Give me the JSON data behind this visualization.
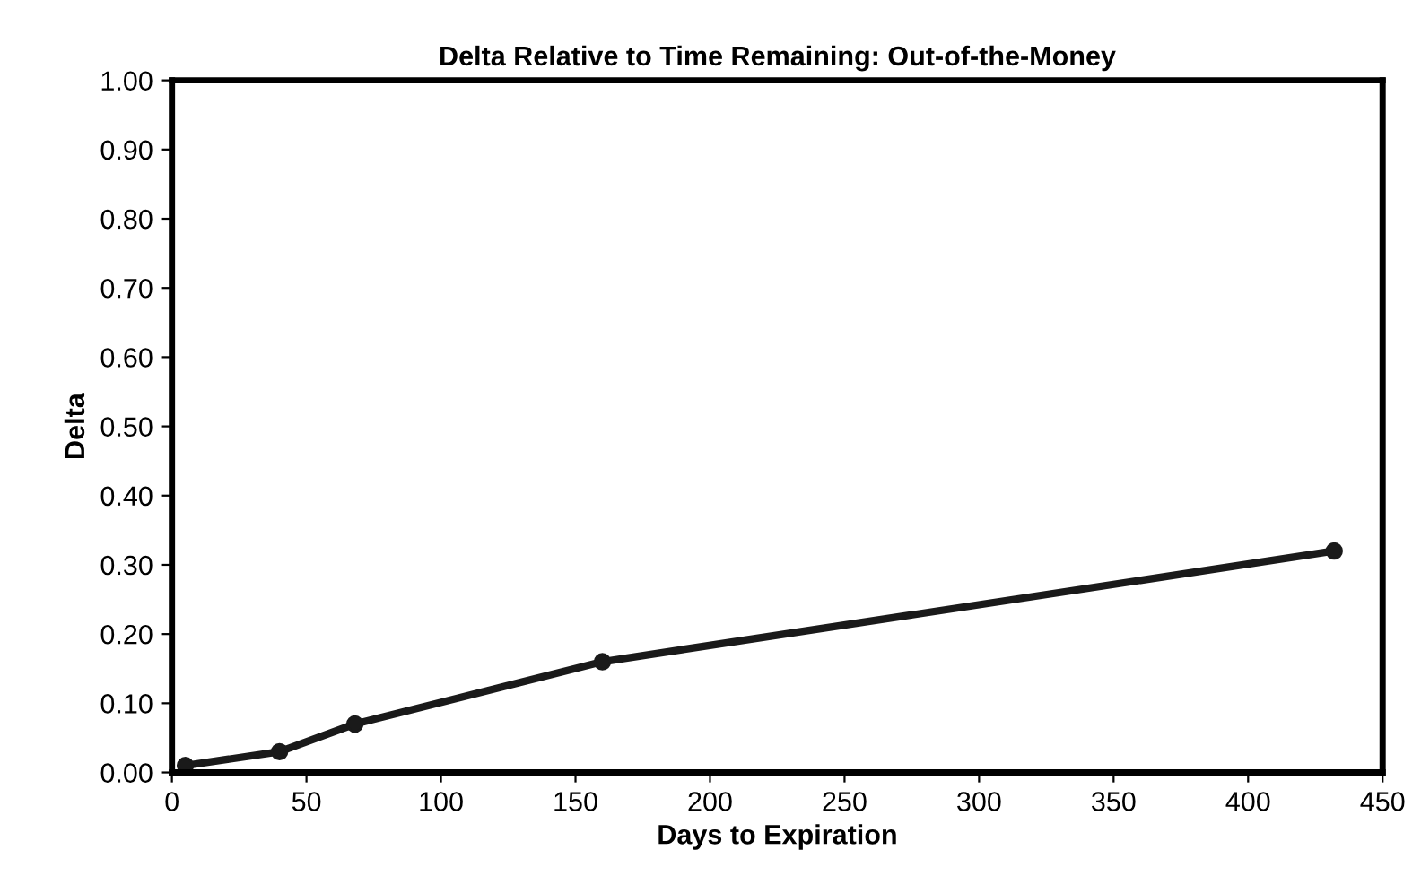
{
  "chart_data": {
    "type": "line",
    "title": "Delta Relative to Time Remaining: Out-of-the-Money",
    "xlabel": "Days to Expiration",
    "ylabel": "Delta",
    "x": [
      5,
      40,
      68,
      160,
      432
    ],
    "series": [
      {
        "color": "#1a1a1a",
        "values": [
          0.01,
          0.03,
          0.07,
          0.16,
          0.32
        ]
      }
    ],
    "xlim": [
      0,
      450
    ],
    "xticks": [
      0,
      50,
      100,
      150,
      200,
      250,
      300,
      350,
      400,
      450
    ],
    "ylim": [
      0,
      1
    ],
    "yticks": [
      {
        "value": 0,
        "label": "0.00"
      },
      {
        "value": 0.1,
        "label": "0.10"
      },
      {
        "value": 0.2,
        "label": "0.20"
      },
      {
        "value": 0.3,
        "label": "0.30"
      },
      {
        "value": 0.4,
        "label": "0.40"
      },
      {
        "value": 0.5,
        "label": "0.50"
      },
      {
        "value": 0.6,
        "label": "0.60"
      },
      {
        "value": 0.7,
        "label": "0.70"
      },
      {
        "value": 0.8,
        "label": "0.80"
      },
      {
        "value": 0.9,
        "label": "0.90"
      },
      {
        "value": 1,
        "label": "1.00"
      }
    ],
    "grid": false,
    "legend": false,
    "marker": "circle",
    "line_style": "solid"
  }
}
